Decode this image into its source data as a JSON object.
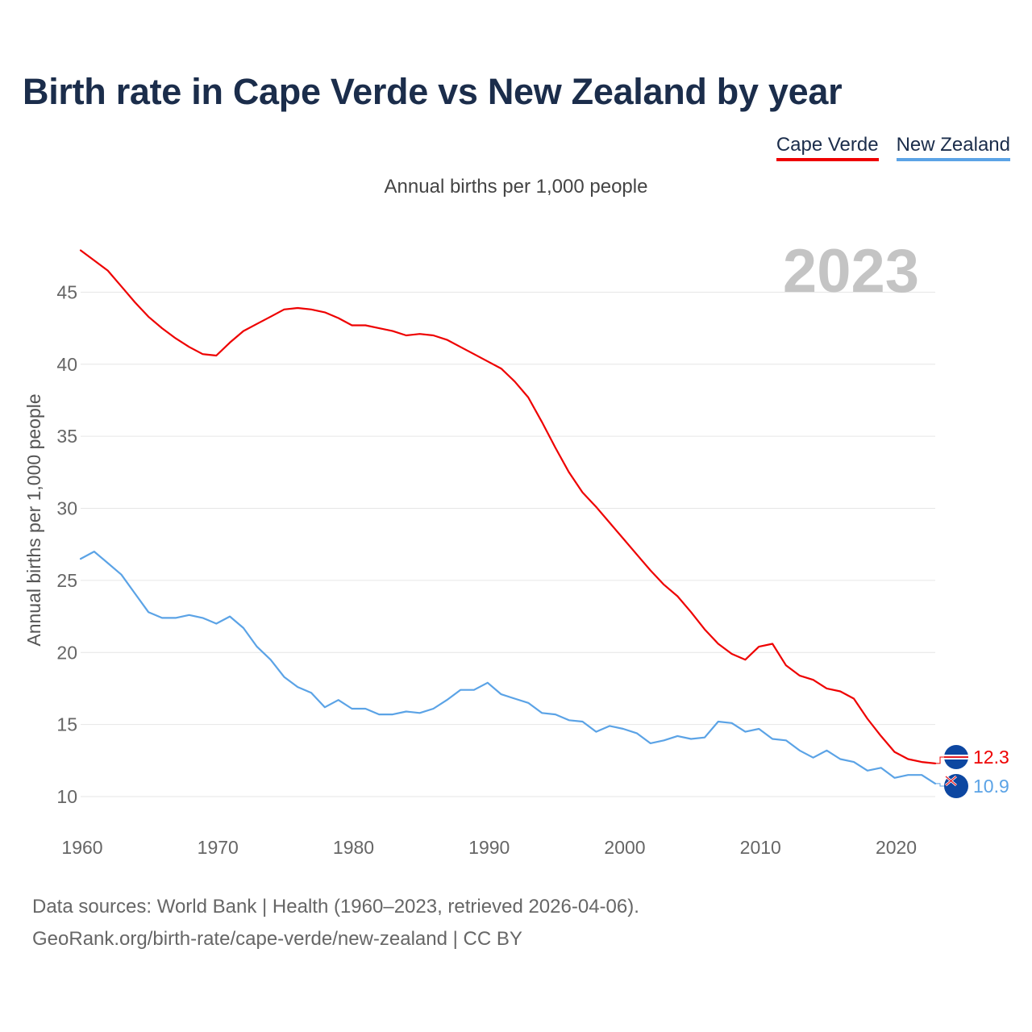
{
  "title": "Birth rate in Cape Verde vs New Zealand by year",
  "subtitle": "Annual births per 1,000 people",
  "legend": [
    "Cape Verde",
    "New Zealand"
  ],
  "source_line1": "Data sources: World Bank | Health (1960–2023, retrieved 2026-04-06).",
  "source_line2": "GeoRank.org/birth-rate/cape-verde/new-zealand | CC BY",
  "colors": {
    "cape_verde": "#ee0000",
    "new_zealand": "#5ba3e6",
    "grid": "#e6e6e6"
  },
  "chart_data": {
    "type": "line",
    "title": "Birth rate in Cape Verde vs New Zealand by year",
    "subtitle": "Annual births per 1,000 people",
    "xlabel": "",
    "ylabel": "Annual births per 1,000 people",
    "xlim": [
      1960,
      2023
    ],
    "ylim": [
      10,
      48
    ],
    "yticks": [
      10,
      15,
      20,
      25,
      30,
      35,
      40,
      45
    ],
    "xticks": [
      1960,
      1970,
      1980,
      1990,
      2000,
      2010,
      2020
    ],
    "year_label": "2023",
    "grid": true,
    "legend_position": "top-right",
    "x": [
      1960,
      1961,
      1962,
      1963,
      1964,
      1965,
      1966,
      1967,
      1968,
      1969,
      1970,
      1971,
      1972,
      1973,
      1974,
      1975,
      1976,
      1977,
      1978,
      1979,
      1980,
      1981,
      1982,
      1983,
      1984,
      1985,
      1986,
      1987,
      1988,
      1989,
      1990,
      1991,
      1992,
      1993,
      1994,
      1995,
      1996,
      1997,
      1998,
      1999,
      2000,
      2001,
      2002,
      2003,
      2004,
      2005,
      2006,
      2007,
      2008,
      2009,
      2010,
      2011,
      2012,
      2013,
      2014,
      2015,
      2016,
      2017,
      2018,
      2019,
      2020,
      2021,
      2022,
      2023
    ],
    "series": [
      {
        "name": "Cape Verde",
        "end_label": "12.3",
        "values": [
          47.9,
          47.2,
          46.5,
          45.4,
          44.3,
          43.3,
          42.5,
          41.8,
          41.2,
          40.7,
          40.6,
          41.5,
          42.3,
          42.8,
          43.3,
          43.8,
          43.9,
          43.8,
          43.6,
          43.2,
          42.7,
          42.7,
          42.5,
          42.3,
          42.0,
          42.1,
          42.0,
          41.7,
          41.2,
          40.7,
          40.2,
          39.7,
          38.8,
          37.7,
          36.0,
          34.2,
          32.5,
          31.1,
          30.1,
          29.0,
          27.9,
          26.8,
          25.7,
          24.7,
          23.9,
          22.8,
          21.6,
          20.6,
          19.9,
          19.5,
          20.4,
          20.6,
          19.1,
          18.4,
          18.1,
          17.5,
          17.3,
          16.8,
          15.4,
          14.2,
          13.1,
          12.6,
          12.4,
          12.3
        ]
      },
      {
        "name": "New Zealand",
        "end_label": "10.9",
        "values": [
          26.5,
          27.0,
          26.2,
          25.4,
          24.1,
          22.8,
          22.4,
          22.4,
          22.6,
          22.4,
          22.0,
          22.5,
          21.7,
          20.4,
          19.5,
          18.3,
          17.6,
          17.2,
          16.2,
          16.7,
          16.1,
          16.1,
          15.7,
          15.7,
          15.9,
          15.8,
          16.1,
          16.7,
          17.4,
          17.4,
          17.9,
          17.1,
          16.8,
          16.5,
          15.8,
          15.7,
          15.3,
          15.2,
          14.5,
          14.9,
          14.7,
          14.4,
          13.7,
          13.9,
          14.2,
          14.0,
          14.1,
          15.2,
          15.1,
          14.5,
          14.7,
          14.0,
          13.9,
          13.2,
          12.7,
          13.2,
          12.6,
          12.4,
          11.8,
          12.0,
          11.3,
          11.5,
          11.5,
          10.9
        ]
      }
    ]
  }
}
